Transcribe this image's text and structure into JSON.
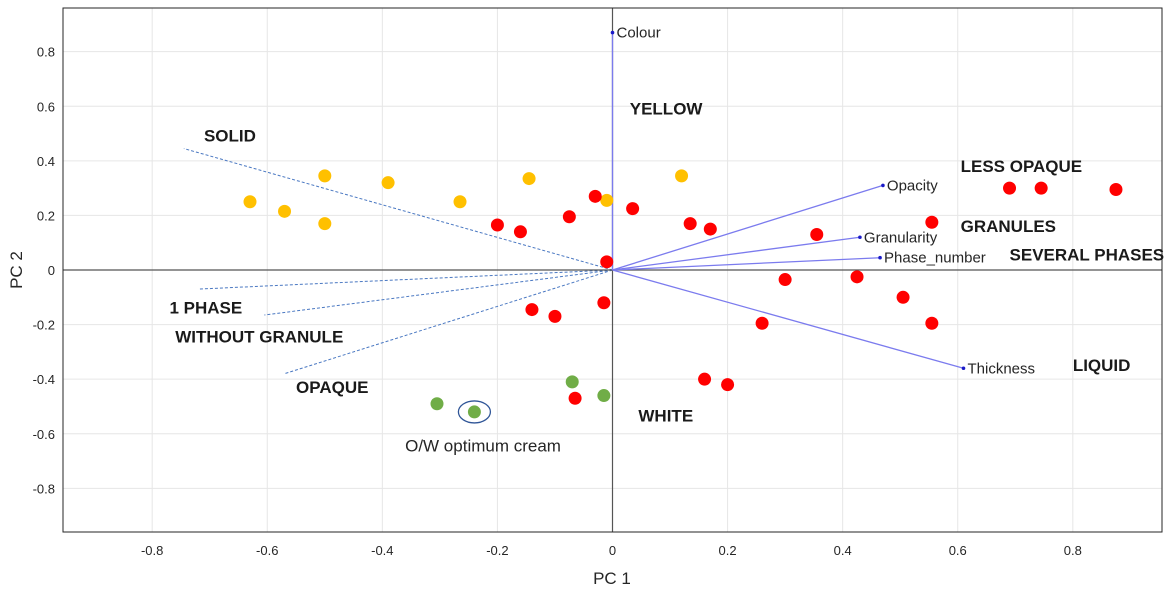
{
  "chart_data": {
    "type": "scatter",
    "title": "",
    "xlabel": "PC 1",
    "ylabel": "PC 2",
    "xlim": [
      -0.955,
      0.955
    ],
    "ylim": [
      -0.96,
      0.96
    ],
    "xticks": [
      "-0.8",
      "-0.6",
      "-0.4",
      "-0.2",
      "0",
      "0.2",
      "0.4",
      "0.6",
      "0.8"
    ],
    "xtick_values": [
      -0.8,
      -0.6,
      -0.4,
      -0.2,
      0,
      0.2,
      0.4,
      0.6,
      0.8
    ],
    "yticks": [
      "0.8",
      "0.6",
      "0.4",
      "0.2",
      "0",
      "-0.2",
      "-0.4",
      "-0.6",
      "-0.8"
    ],
    "ytick_values": [
      0.8,
      0.6,
      0.4,
      0.2,
      0,
      -0.2,
      -0.4,
      -0.6,
      -0.8
    ],
    "grid": true,
    "colors": {
      "yellow_points": "#FFC000",
      "red_points": "#FF0000",
      "green_points": "#70AD47",
      "loadings": "#7B7BEE",
      "loading_tip": "#1A1AC8",
      "dashed": "#4A78C2",
      "zero_axes": "#555555",
      "grid": "#E6E6E6",
      "circle": "#2F5597"
    },
    "series": [
      {
        "color_key": "yellow_points",
        "points": [
          {
            "x": -0.63,
            "y": 0.25
          },
          {
            "x": -0.57,
            "y": 0.215
          },
          {
            "x": -0.5,
            "y": 0.345
          },
          {
            "x": -0.5,
            "y": 0.17
          },
          {
            "x": -0.39,
            "y": 0.32
          },
          {
            "x": -0.265,
            "y": 0.25
          },
          {
            "x": -0.145,
            "y": 0.335
          },
          {
            "x": -0.01,
            "y": 0.255
          },
          {
            "x": 0.12,
            "y": 0.345
          }
        ]
      },
      {
        "color_key": "red_points",
        "points": [
          {
            "x": -0.2,
            "y": 0.165
          },
          {
            "x": -0.16,
            "y": 0.14
          },
          {
            "x": -0.075,
            "y": 0.195
          },
          {
            "x": -0.03,
            "y": 0.27
          },
          {
            "x": 0.035,
            "y": 0.225
          },
          {
            "x": 0.135,
            "y": 0.17
          },
          {
            "x": 0.17,
            "y": 0.15
          },
          {
            "x": -0.01,
            "y": 0.03
          },
          {
            "x": 0.355,
            "y": 0.13
          },
          {
            "x": 0.555,
            "y": 0.175
          },
          {
            "x": 0.69,
            "y": 0.3
          },
          {
            "x": 0.745,
            "y": 0.3
          },
          {
            "x": 0.875,
            "y": 0.295
          },
          {
            "x": 0.3,
            "y": -0.035
          },
          {
            "x": 0.425,
            "y": -0.025
          },
          {
            "x": 0.505,
            "y": -0.1
          },
          {
            "x": 0.555,
            "y": -0.195
          },
          {
            "x": 0.26,
            "y": -0.195
          },
          {
            "x": -0.14,
            "y": -0.145
          },
          {
            "x": -0.1,
            "y": -0.17
          },
          {
            "x": -0.015,
            "y": -0.12
          },
          {
            "x": 0.16,
            "y": -0.4
          },
          {
            "x": 0.2,
            "y": -0.42
          },
          {
            "x": -0.065,
            "y": -0.47
          }
        ]
      },
      {
        "color_key": "green_points",
        "points": [
          {
            "x": -0.305,
            "y": -0.49
          },
          {
            "x": -0.24,
            "y": -0.52
          },
          {
            "x": -0.07,
            "y": -0.41
          },
          {
            "x": -0.015,
            "y": -0.46
          }
        ]
      }
    ],
    "loadings": [
      {
        "name": "Colour",
        "x": 0.0,
        "y": 0.87
      },
      {
        "name": "Opacity",
        "x": 0.47,
        "y": 0.31
      },
      {
        "name": "Granularity",
        "x": 0.43,
        "y": 0.12
      },
      {
        "name": "Phase_number",
        "x": 0.465,
        "y": 0.045
      },
      {
        "name": "Thickness",
        "x": 0.61,
        "y": -0.36
      }
    ],
    "negative_directions": [
      {
        "x": -0.745,
        "y": 0.445
      },
      {
        "x": -0.72,
        "y": -0.07
      },
      {
        "x": -0.605,
        "y": -0.165
      },
      {
        "x": -0.57,
        "y": -0.38
      }
    ],
    "pole_labels": [
      {
        "text": "YELLOW",
        "x": 0.03,
        "y": 0.57
      },
      {
        "text": "SOLID",
        "x": -0.71,
        "y": 0.47
      },
      {
        "text": "LESS OPAQUE",
        "x": 0.605,
        "y": 0.36
      },
      {
        "text": "GRANULES",
        "x": 0.605,
        "y": 0.14
      },
      {
        "text": "SEVERAL PHASES",
        "x": 0.69,
        "y": 0.035
      },
      {
        "text": "LIQUID",
        "x": 0.8,
        "y": -0.37
      },
      {
        "text": "1 PHASE",
        "x": -0.77,
        "y": -0.16
      },
      {
        "text": "WITHOUT GRANULE",
        "x": -0.76,
        "y": -0.265
      },
      {
        "text": "OPAQUE",
        "x": -0.55,
        "y": -0.45
      },
      {
        "text": "WHITE",
        "x": 0.045,
        "y": -0.555
      }
    ],
    "annotation": {
      "text": "O/W optimum cream",
      "x": -0.225,
      "y": -0.665,
      "circled_point": {
        "x": -0.24,
        "y": -0.52
      }
    }
  }
}
